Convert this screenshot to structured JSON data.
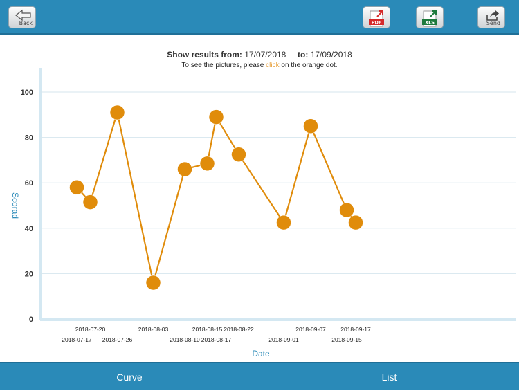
{
  "toolbar": {
    "back_label": "Back",
    "pdf_icon_text": "PDF",
    "xls_icon_text": "XLS",
    "send_label": "Send"
  },
  "header": {
    "from_label": "Show results from:",
    "from_date": "17/07/2018",
    "to_label": "to:",
    "to_date": "17/09/2018",
    "hint_pre": "To see the pictures, please ",
    "hint_click": "click",
    "hint_post": " on the orange dot."
  },
  "colors": {
    "accent": "#e08c0b",
    "bar": "#2a8ab8",
    "axis_label": "#2a8ab8",
    "link": "#e8a13c"
  },
  "chart_data": {
    "type": "line",
    "xlabel": "Date",
    "ylabel": "Scorad",
    "ylim": [
      0,
      100
    ],
    "yticks": [
      0,
      20,
      40,
      60,
      80,
      100
    ],
    "grid": true,
    "x": [
      "2018-07-17",
      "2018-07-20",
      "2018-07-26",
      "2018-08-03",
      "2018-08-10",
      "2018-08-15",
      "2018-08-17",
      "2018-08-22",
      "2018-09-01",
      "2018-09-07",
      "2018-09-15",
      "2018-09-17"
    ],
    "series": [
      {
        "values": [
          58,
          51.5,
          91,
          16,
          66,
          68.5,
          89,
          72.5,
          42.5,
          85,
          48,
          42.5
        ]
      }
    ]
  },
  "tabs": {
    "curve_label": "Curve",
    "list_label": "List"
  }
}
